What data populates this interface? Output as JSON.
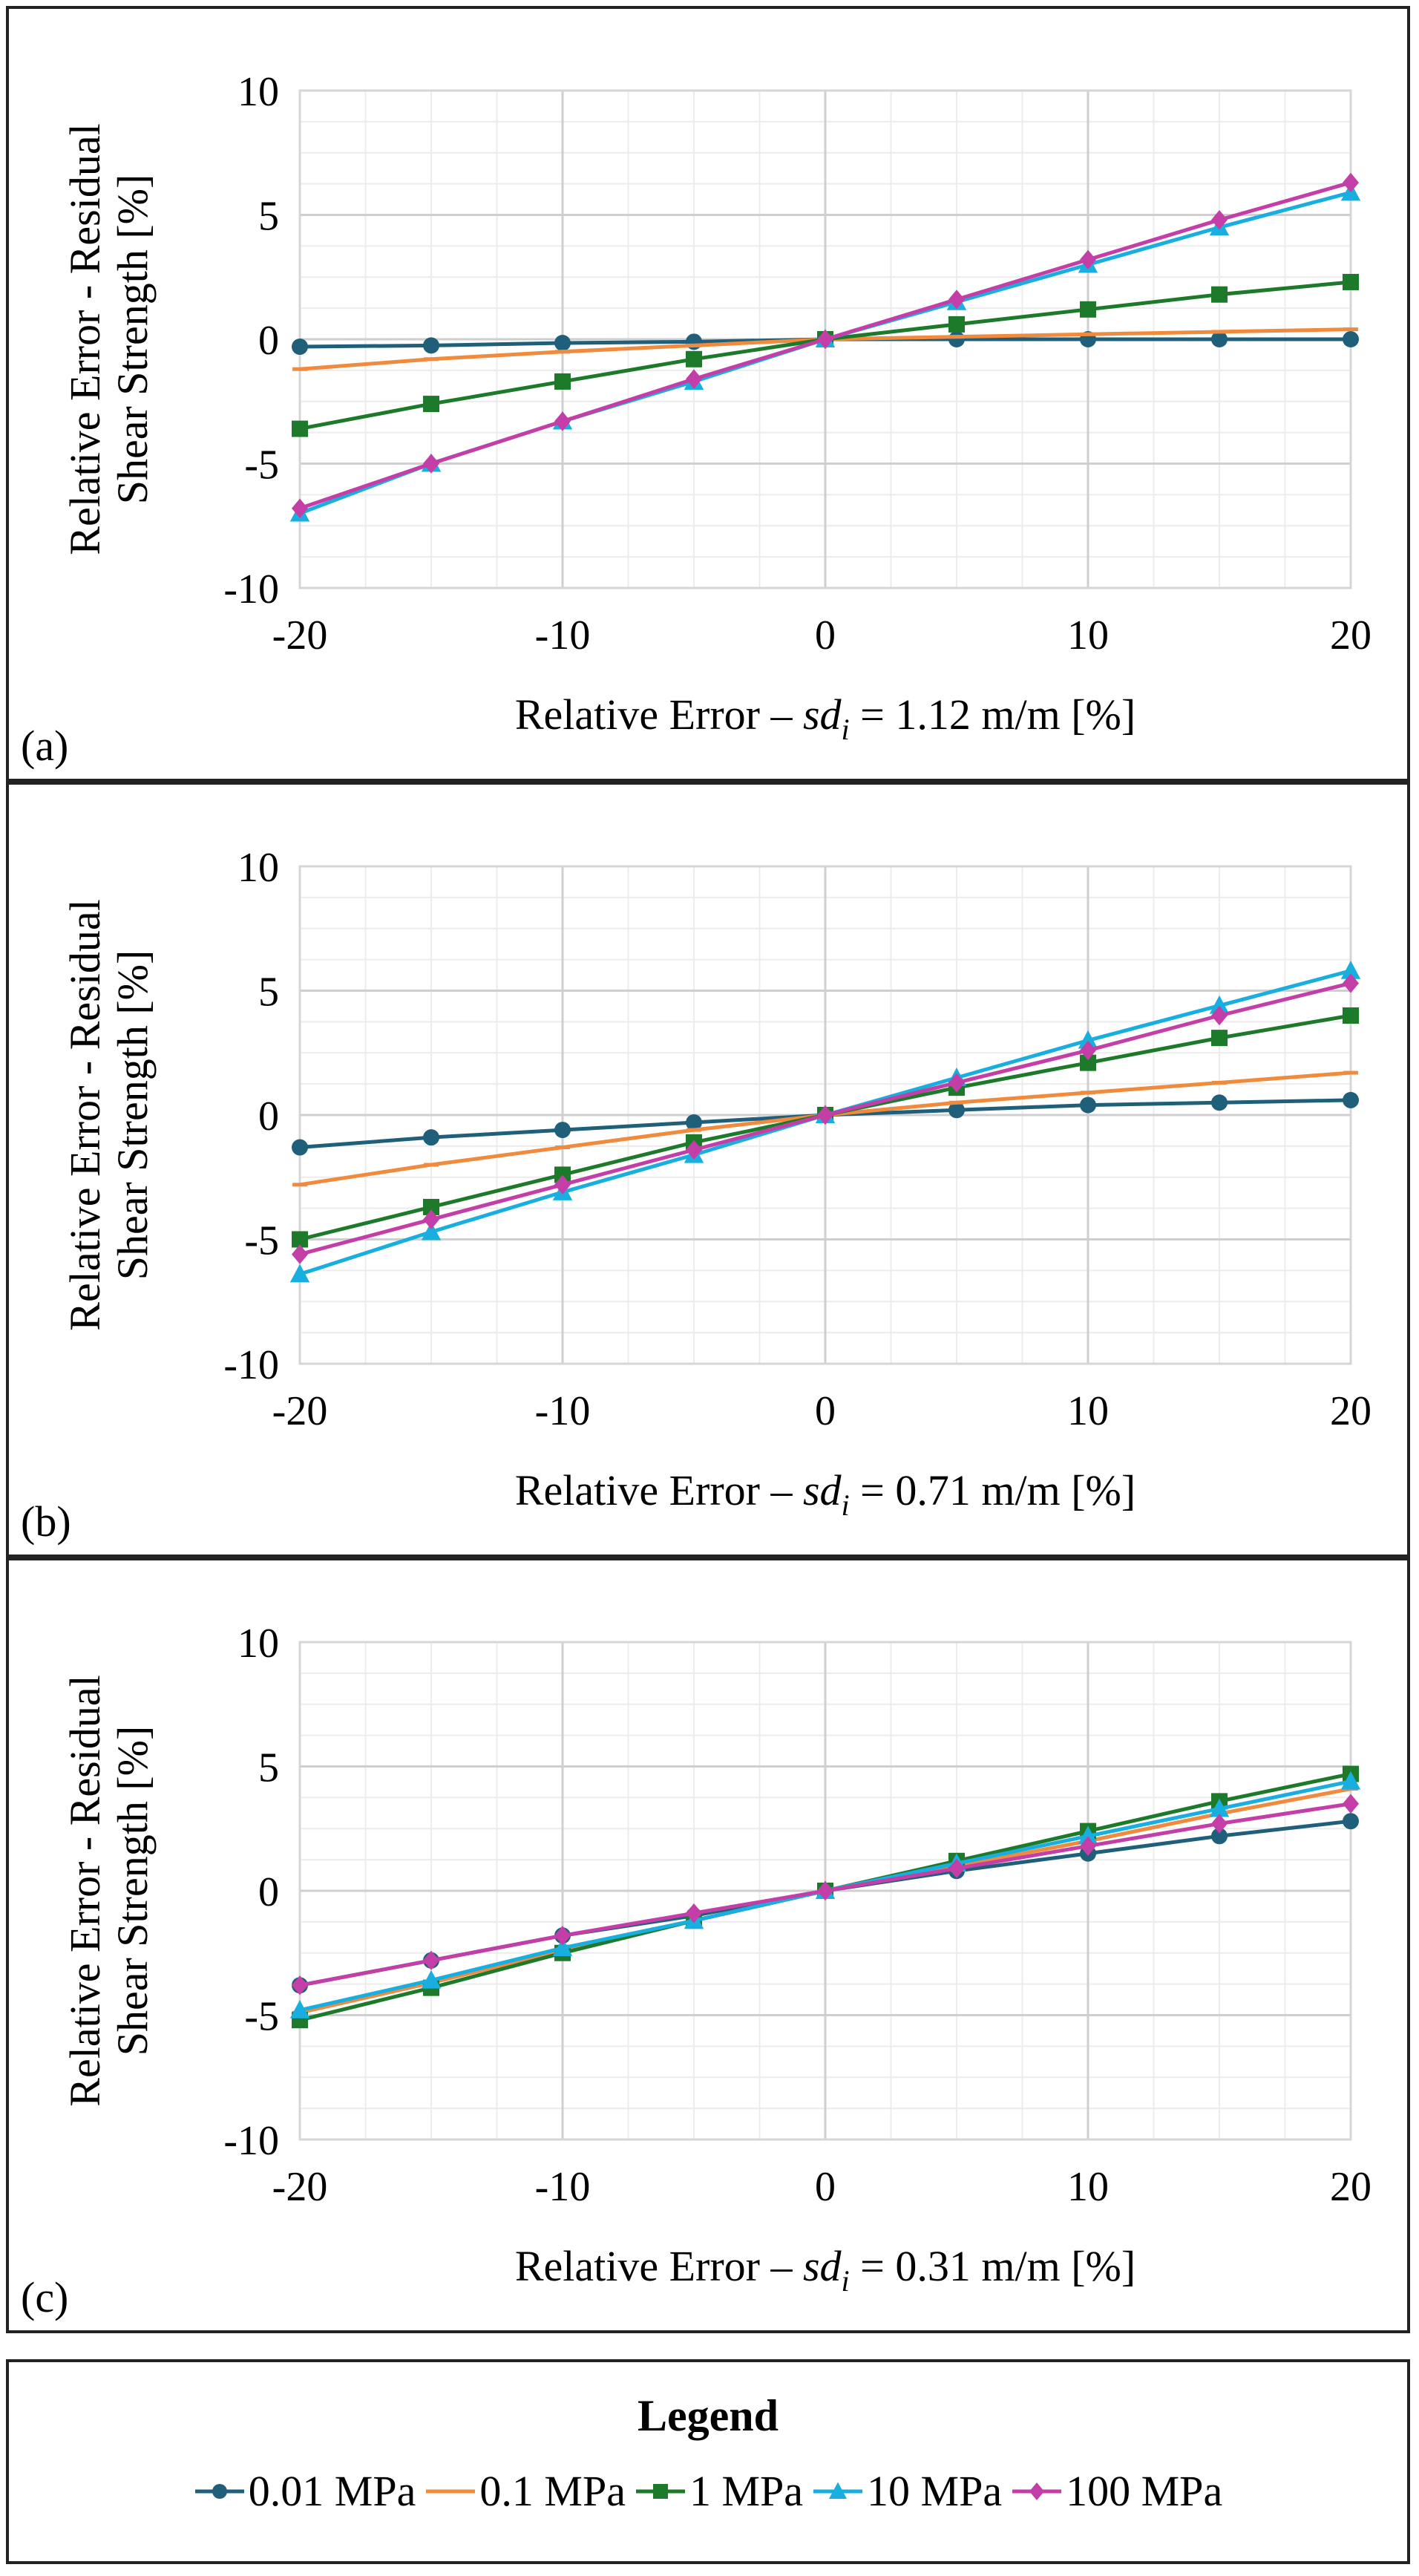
{
  "chart_data": [
    {
      "type": "line",
      "panel_label": "(a)",
      "xlabel_prefix": "Relative Error – ",
      "xlabel_var": "sd",
      "xlabel_sub": "i",
      "xlabel_suffix": " = 1.12 m/m [%]",
      "ylabel_line1": "Relative Error - Residual",
      "ylabel_line2": "Shear Strength [%]",
      "xlim": [
        -20,
        20
      ],
      "ylim": [
        -10,
        10
      ],
      "xticks": [
        -20,
        -10,
        0,
        10,
        20
      ],
      "yticks": [
        -10,
        -5,
        0,
        5,
        10
      ],
      "x": [
        -20,
        -15,
        -10,
        -5,
        0,
        5,
        10,
        15,
        20
      ],
      "series": [
        {
          "name": "0.01 MPa",
          "values": [
            -0.3,
            -0.25,
            -0.15,
            -0.1,
            0,
            0,
            0,
            0,
            0
          ]
        },
        {
          "name": "0.1 MPa",
          "values": [
            -1.2,
            -0.8,
            -0.5,
            -0.25,
            0,
            0.1,
            0.2,
            0.3,
            0.4
          ]
        },
        {
          "name": "1 MPa",
          "values": [
            -3.6,
            -2.6,
            -1.7,
            -0.8,
            0,
            0.6,
            1.2,
            1.8,
            2.3
          ]
        },
        {
          "name": "10 MPa",
          "values": [
            -7.0,
            -5.0,
            -3.3,
            -1.7,
            0,
            1.5,
            3.0,
            4.5,
            5.9
          ]
        },
        {
          "name": "100 MPa",
          "values": [
            -6.8,
            -5.0,
            -3.3,
            -1.6,
            0,
            1.6,
            3.2,
            4.8,
            6.3
          ]
        }
      ]
    },
    {
      "type": "line",
      "panel_label": "(b)",
      "xlabel_prefix": "Relative Error – ",
      "xlabel_var": "sd",
      "xlabel_sub": "i",
      "xlabel_suffix": " = 0.71 m/m [%]",
      "ylabel_line1": "Relative Error - Residual",
      "ylabel_line2": "Shear Strength [%]",
      "xlim": [
        -20,
        20
      ],
      "ylim": [
        -10,
        10
      ],
      "xticks": [
        -20,
        -10,
        0,
        10,
        20
      ],
      "yticks": [
        -10,
        -5,
        0,
        5,
        10
      ],
      "x": [
        -20,
        -15,
        -10,
        -5,
        0,
        5,
        10,
        15,
        20
      ],
      "series": [
        {
          "name": "0.01 MPa",
          "values": [
            -1.3,
            -0.9,
            -0.6,
            -0.3,
            0,
            0.2,
            0.4,
            0.5,
            0.6
          ]
        },
        {
          "name": "0.1 MPa",
          "values": [
            -2.8,
            -2.0,
            -1.3,
            -0.6,
            0,
            0.5,
            0.9,
            1.3,
            1.7
          ]
        },
        {
          "name": "1 MPa",
          "values": [
            -5.0,
            -3.7,
            -2.4,
            -1.1,
            0,
            1.1,
            2.1,
            3.1,
            4.0
          ]
        },
        {
          "name": "10 MPa",
          "values": [
            -6.4,
            -4.7,
            -3.1,
            -1.6,
            0,
            1.5,
            3.0,
            4.4,
            5.8
          ]
        },
        {
          "name": "100 MPa",
          "values": [
            -5.6,
            -4.2,
            -2.8,
            -1.4,
            0,
            1.3,
            2.6,
            4.0,
            5.3
          ]
        }
      ]
    },
    {
      "type": "line",
      "panel_label": "(c)",
      "xlabel_prefix": "Relative Error – ",
      "xlabel_var": "sd",
      "xlabel_sub": "i",
      "xlabel_suffix": " = 0.31 m/m [%]",
      "ylabel_line1": "Relative Error - Residual",
      "ylabel_line2": "Shear Strength [%]",
      "xlim": [
        -20,
        20
      ],
      "ylim": [
        -10,
        10
      ],
      "xticks": [
        -20,
        -10,
        0,
        10,
        20
      ],
      "yticks": [
        -10,
        -5,
        0,
        5,
        10
      ],
      "x": [
        -20,
        -15,
        -10,
        -5,
        0,
        5,
        10,
        15,
        20
      ],
      "series": [
        {
          "name": "0.01 MPa",
          "values": [
            -3.8,
            -2.8,
            -1.8,
            -1.0,
            0,
            0.8,
            1.5,
            2.2,
            2.8
          ]
        },
        {
          "name": "0.1 MPa",
          "values": [
            -4.9,
            -3.7,
            -2.4,
            -1.2,
            0,
            1.0,
            2.0,
            3.1,
            4.1
          ]
        },
        {
          "name": "1 MPa",
          "values": [
            -5.2,
            -3.9,
            -2.5,
            -1.2,
            0,
            1.2,
            2.4,
            3.6,
            4.7
          ]
        },
        {
          "name": "10 MPa",
          "values": [
            -4.8,
            -3.6,
            -2.3,
            -1.2,
            0,
            1.1,
            2.2,
            3.3,
            4.4
          ]
        },
        {
          "name": "100 MPa",
          "values": [
            -3.8,
            -2.8,
            -1.8,
            -0.9,
            0,
            0.9,
            1.8,
            2.7,
            3.5
          ]
        }
      ]
    }
  ],
  "legend": {
    "title": "Legend",
    "items": [
      {
        "label": "0.01 MPa",
        "color": "#1f5f7a",
        "marker": "circle"
      },
      {
        "label": "0.1 MPa",
        "color": "#f08a3c",
        "marker": "dash"
      },
      {
        "label": "1 MPa",
        "color": "#1d7a2a",
        "marker": "square"
      },
      {
        "label": "10 MPa",
        "color": "#19aee0",
        "marker": "triangle"
      },
      {
        "label": "100 MPa",
        "color": "#c43ea8",
        "marker": "diamond"
      }
    ]
  }
}
